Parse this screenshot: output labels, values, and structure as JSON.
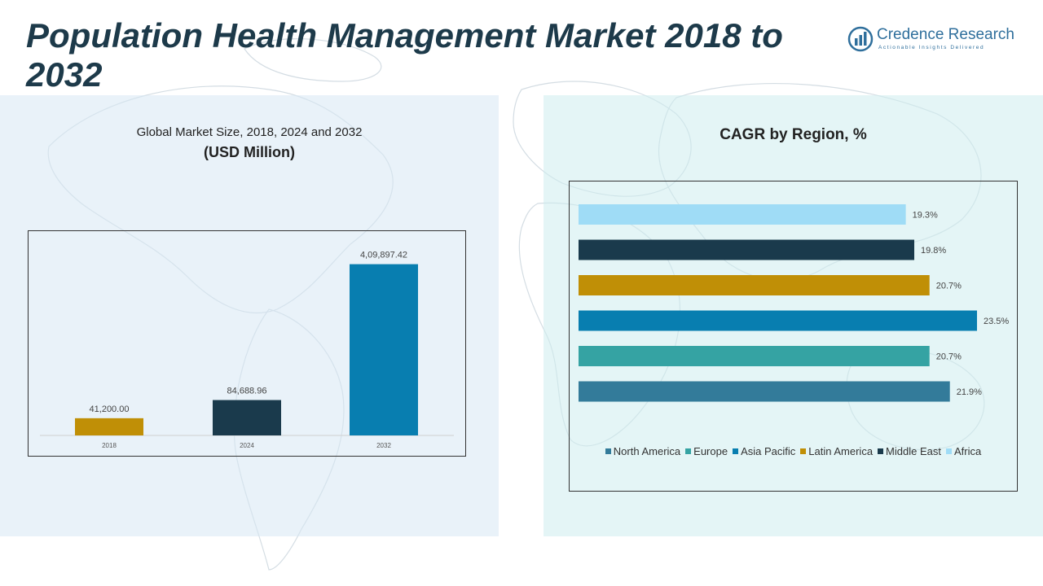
{
  "header": {
    "title": "Population Health Management Market 2018 to 2032"
  },
  "brand": {
    "name": "Credence Research",
    "tagline": "Actionable Insights Delivered"
  },
  "colors": {
    "title": "#1d3a4a",
    "brand": "#2f6f9c",
    "left_panel": "#d7e8f4",
    "right_panel": "#cdecee"
  },
  "chart_data": [
    {
      "type": "bar",
      "title": "Global Market Size, 2018, 2024 and 2032",
      "subtitle": "(USD Million)",
      "categories": [
        "2018",
        "2024",
        "2032"
      ],
      "values": [
        41200.0,
        84688.96,
        409897.42
      ],
      "value_labels": [
        "41,200.00",
        "84,688.96",
        "4,09,897.42"
      ],
      "bar_colors": [
        "#c08f06",
        "#1a3a4c",
        "#087eb0"
      ],
      "ylim": [
        0,
        450000
      ],
      "grid": false
    },
    {
      "type": "bar",
      "orientation": "horizontal",
      "title": "CAGR by Region, %",
      "categories": [
        "North America",
        "Europe",
        "Asia Pacific",
        "Latin America",
        "Middle East",
        "Africa"
      ],
      "values": [
        21.9,
        20.7,
        23.5,
        20.7,
        19.8,
        19.3
      ],
      "value_labels": [
        "21.9%",
        "20.7%",
        "23.5%",
        "20.7%",
        "19.8%",
        "19.3%"
      ],
      "bar_colors": [
        "#337b9a",
        "#35a3a3",
        "#087eb0",
        "#c08f06",
        "#1a3a4c",
        "#9fdcf6"
      ],
      "xlim": [
        0,
        23.5
      ],
      "legend": "bottom",
      "grid": false
    }
  ]
}
